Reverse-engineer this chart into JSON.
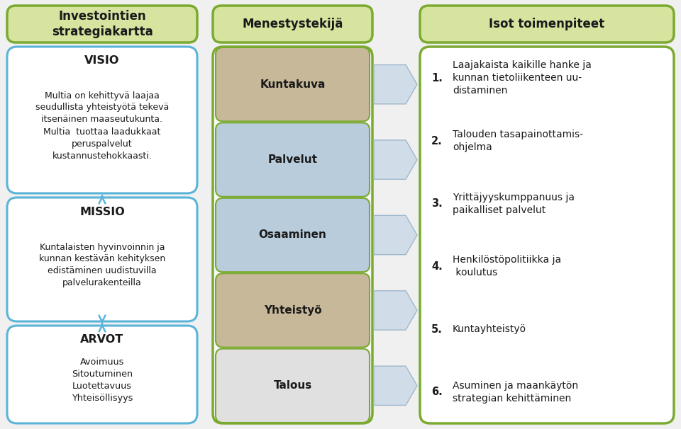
{
  "bg_color": "#f0f0f0",
  "header_col1": "Investointien\nstrategiakartta",
  "header_col2": "Menestystekijä",
  "header_col3": "Isot toimenpiteet",
  "header_bg": "#d6e4a0",
  "header_border": "#7aaa30",
  "visio_title": "VISIO",
  "visio_text": "Multia on kehittyvä laajaa\nseudullista yhteistyötä tekevä\nitsenäinen maaseutukunta.\nMultia  tuottaa laadukkaat\nperuspalvelut\nkustannustehokkaasti.",
  "missio_title": "MISSIO",
  "missio_text": "Kuntalaisten hyvinvoinnin ja\nkunnan kestävän kehityksen\nedistäminen uudistuvilla\npalvelurakenteilla",
  "arvot_title": "ARVOT",
  "arvot_text": "Avoimuus\nSitoutuminen\nLuotettavuus\nYhteisöllisyys",
  "left_box_border": "#5ab4d8",
  "left_box_bg": "#ffffff",
  "menestys_items": [
    "Kuntakuva",
    "Palvelut",
    "Osaaminen",
    "Yhteistyö",
    "Talous"
  ],
  "menestys_colors": [
    "#c8b89a",
    "#b8ccdc",
    "#b8ccdc",
    "#c8b89a",
    "#e0e0e0"
  ],
  "menestys_border": "#7aaa30",
  "menestys_text_color": "#1a1a1a",
  "arrow_fill": "#d0dce8",
  "arrow_edge": "#a0b8cc",
  "right_box_border": "#7aaa30",
  "right_box_bg": "#ffffff",
  "right_items": [
    [
      "1.",
      "Laajakaista kaikille hanke ja\nkunnan tietoliikenteen uu-\ndistaminen"
    ],
    [
      "2.",
      "Talouden tasapainottamis-\nohjelma"
    ],
    [
      "3.",
      "Yrittäjyyskumppanuus ja\npaikalliset palvelut"
    ],
    [
      "4.",
      "Henkilöstöpolitiikka ja\n koulutus"
    ],
    [
      "5.",
      "Kuntayhteistyö"
    ],
    [
      "6.",
      "Asuminen ja maankäytön\nstrategian kehittäminen"
    ]
  ],
  "text_color": "#1a1a1a",
  "title_color": "#1a1a1a"
}
